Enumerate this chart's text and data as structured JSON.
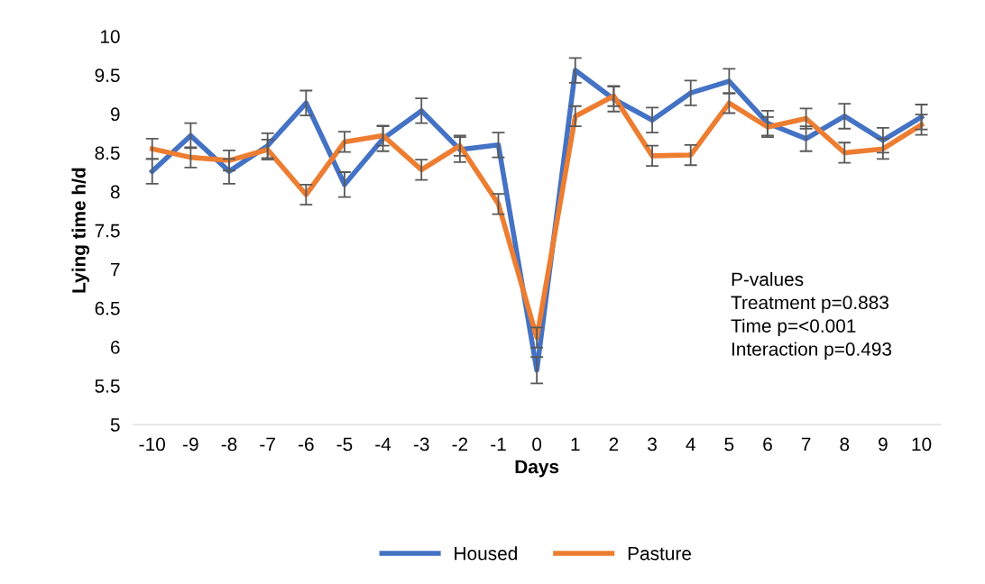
{
  "chart_data": {
    "type": "line",
    "xlabel": "Days",
    "ylabel": "Lying time h/d",
    "categories": [
      "-10",
      "-9",
      "-8",
      "-7",
      "-6",
      "-5",
      "-4",
      "-3",
      "-2",
      "-1",
      "0",
      "1",
      "2",
      "3",
      "4",
      "5",
      "6",
      "7",
      "8",
      "9",
      "10"
    ],
    "ylim": [
      5,
      10
    ],
    "yticks": [
      5,
      5.5,
      6,
      6.5,
      7,
      7.5,
      8,
      8.5,
      9,
      9.5,
      10
    ],
    "grid": false,
    "legend": "bottom",
    "marker": "none",
    "line_style": "solid",
    "series": [
      {
        "name": "Housed",
        "color": "#4472c4",
        "values": [
          8.26,
          8.72,
          8.26,
          8.59,
          9.14,
          8.09,
          8.68,
          9.04,
          8.54,
          8.6,
          5.7,
          9.56,
          9.19,
          8.92,
          9.27,
          9.42,
          8.88,
          8.68,
          8.97,
          8.66,
          8.96
        ],
        "errors": [
          0.16,
          0.16,
          0.16,
          0.16,
          0.16,
          0.16,
          0.16,
          0.16,
          0.16,
          0.16,
          0.17,
          0.16,
          0.16,
          0.16,
          0.16,
          0.16,
          0.16,
          0.16,
          0.16,
          0.16,
          0.16
        ]
      },
      {
        "name": "Pasture",
        "color": "#ed7d31",
        "values": [
          8.55,
          8.44,
          8.4,
          8.54,
          7.96,
          8.64,
          8.72,
          8.28,
          8.59,
          7.84,
          6.12,
          8.97,
          9.23,
          8.46,
          8.47,
          9.14,
          8.83,
          8.94,
          8.5,
          8.55,
          8.86
        ],
        "errors": [
          0.13,
          0.13,
          0.13,
          0.13,
          0.13,
          0.13,
          0.13,
          0.13,
          0.13,
          0.13,
          0.13,
          0.13,
          0.13,
          0.13,
          0.13,
          0.13,
          0.13,
          0.13,
          0.13,
          0.13,
          0.13
        ]
      }
    ],
    "annotations": [
      "P-values",
      "Treatment p=0.883",
      "Time p=<0.001",
      "Interaction p=0.493"
    ]
  }
}
